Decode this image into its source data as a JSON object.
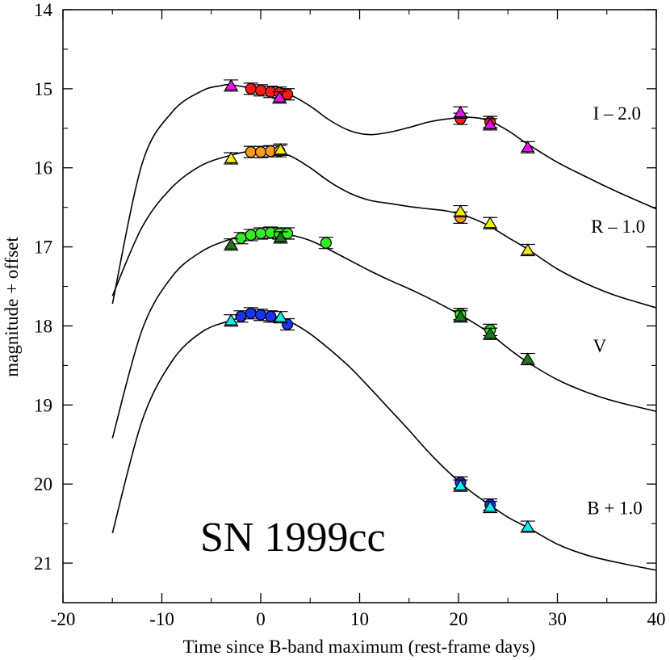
{
  "chart_data": {
    "type": "scatter",
    "title": "SN 1999cc",
    "xlabel": "Time since B-band maximum (rest-frame days)",
    "ylabel": "magnitude + offset",
    "xlim": [
      -20,
      40
    ],
    "ylim": [
      21.5,
      14
    ],
    "y_inverted": true,
    "x_ticks": [
      -20,
      -10,
      0,
      10,
      20,
      30,
      40
    ],
    "x_tick_labels": [
      "-20",
      "-10",
      "0",
      "10",
      "20",
      "30",
      "40"
    ],
    "y_ticks": [
      14,
      15,
      16,
      17,
      18,
      19,
      20,
      21
    ],
    "y_tick_labels": [
      "14",
      "15",
      "16",
      "17",
      "18",
      "19",
      "20",
      "21"
    ],
    "series": [
      {
        "name": "I – 2.0",
        "label_pos": [
          33.6,
          15.39
        ],
        "circle_color": "#ff1a1a",
        "triangle_color": "#ee11ee",
        "circles": [
          [
            -1.0,
            15.0
          ],
          [
            0.0,
            15.02
          ],
          [
            1.0,
            15.04
          ],
          [
            1.9,
            15.05
          ],
          [
            2.7,
            15.07
          ],
          [
            20.2,
            15.38
          ],
          [
            23.2,
            15.42
          ]
        ],
        "triangles": [
          [
            -3.0,
            14.96
          ],
          [
            1.9,
            15.11
          ],
          [
            20.2,
            15.3
          ],
          [
            23.2,
            15.45
          ],
          [
            27.0,
            15.74
          ]
        ],
        "curve": [
          [
            -15,
            17.72
          ],
          [
            -12,
            15.95
          ],
          [
            -9,
            15.3
          ],
          [
            -6,
            15.03
          ],
          [
            -4,
            14.96
          ],
          [
            -3,
            14.95
          ],
          [
            -1,
            14.99
          ],
          [
            1,
            15.03
          ],
          [
            3,
            15.08
          ],
          [
            5,
            15.22
          ],
          [
            7,
            15.4
          ],
          [
            9,
            15.53
          ],
          [
            11,
            15.58
          ],
          [
            13,
            15.55
          ],
          [
            15,
            15.49
          ],
          [
            17,
            15.42
          ],
          [
            19,
            15.38
          ],
          [
            21,
            15.36
          ],
          [
            23,
            15.4
          ],
          [
            25,
            15.53
          ],
          [
            27,
            15.7
          ],
          [
            30,
            15.93
          ],
          [
            33,
            16.12
          ],
          [
            36,
            16.3
          ],
          [
            40,
            16.52
          ]
        ]
      },
      {
        "name": "R – 1.0",
        "label_pos": [
          33.4,
          16.82
        ],
        "circle_color": "#ff9a1a",
        "triangle_color": "#eeee11",
        "circles": [
          [
            -1.0,
            15.8
          ],
          [
            0.0,
            15.8
          ],
          [
            1.0,
            15.79
          ],
          [
            1.9,
            15.79
          ],
          [
            20.2,
            16.63
          ]
        ],
        "triangles": [
          [
            -3.0,
            15.88
          ],
          [
            2.0,
            15.77
          ],
          [
            20.2,
            16.55
          ],
          [
            23.2,
            16.7
          ],
          [
            27.0,
            17.04
          ]
        ],
        "curve": [
          [
            -15,
            17.62
          ],
          [
            -12,
            16.75
          ],
          [
            -9,
            16.25
          ],
          [
            -6,
            15.97
          ],
          [
            -3,
            15.84
          ],
          [
            -1,
            15.79
          ],
          [
            1,
            15.79
          ],
          [
            3,
            15.85
          ],
          [
            5,
            16.0
          ],
          [
            7,
            16.18
          ],
          [
            9,
            16.32
          ],
          [
            11,
            16.41
          ],
          [
            13,
            16.45
          ],
          [
            15,
            16.49
          ],
          [
            17,
            16.52
          ],
          [
            19,
            16.55
          ],
          [
            21,
            16.62
          ],
          [
            23,
            16.73
          ],
          [
            25,
            16.88
          ],
          [
            27,
            17.03
          ],
          [
            30,
            17.28
          ],
          [
            33,
            17.47
          ],
          [
            36,
            17.62
          ],
          [
            40,
            17.77
          ]
        ]
      },
      {
        "name": "V",
        "label_pos": [
          33.6,
          18.33
        ],
        "circle_color": "#33ee22",
        "triangle_color": "#1a7a1a",
        "circles": [
          [
            -2.0,
            16.89
          ],
          [
            -1.0,
            16.85
          ],
          [
            0.0,
            16.83
          ],
          [
            1.0,
            16.82
          ],
          [
            1.9,
            16.83
          ],
          [
            2.7,
            16.83
          ],
          [
            6.6,
            16.95
          ],
          [
            20.2,
            17.85
          ],
          [
            23.2,
            18.05
          ]
        ],
        "triangles": [
          [
            -3.0,
            16.97
          ],
          [
            2.0,
            16.88
          ],
          [
            20.2,
            17.88
          ],
          [
            23.2,
            18.1
          ],
          [
            27.0,
            18.42
          ]
        ],
        "curve": [
          [
            -15,
            19.42
          ],
          [
            -12,
            18.05
          ],
          [
            -9,
            17.38
          ],
          [
            -6,
            17.06
          ],
          [
            -3,
            16.9
          ],
          [
            -1,
            16.84
          ],
          [
            1,
            16.82
          ],
          [
            3,
            16.85
          ],
          [
            5,
            16.92
          ],
          [
            7,
            17.04
          ],
          [
            9,
            17.17
          ],
          [
            11,
            17.3
          ],
          [
            13,
            17.42
          ],
          [
            15,
            17.53
          ],
          [
            17,
            17.65
          ],
          [
            19,
            17.78
          ],
          [
            21,
            17.92
          ],
          [
            23,
            18.08
          ],
          [
            25,
            18.28
          ],
          [
            27,
            18.46
          ],
          [
            30,
            18.68
          ],
          [
            33,
            18.84
          ],
          [
            36,
            18.96
          ],
          [
            40,
            19.08
          ]
        ]
      },
      {
        "name": "B + 1.0",
        "label_pos": [
          33.0,
          20.38
        ],
        "circle_color": "#1a33ee",
        "triangle_color": "#11eeee",
        "circles": [
          [
            -2.0,
            17.88
          ],
          [
            -1.0,
            17.84
          ],
          [
            0.0,
            17.86
          ],
          [
            1.0,
            17.88
          ],
          [
            2.7,
            17.98
          ],
          [
            20.2,
            19.98
          ],
          [
            23.2,
            20.26
          ]
        ],
        "triangles": [
          [
            -3.0,
            17.93
          ],
          [
            2.0,
            17.89
          ],
          [
            20.2,
            20.02
          ],
          [
            23.2,
            20.29
          ],
          [
            27.0,
            20.54
          ]
        ],
        "curve": [
          [
            -15,
            20.62
          ],
          [
            -12,
            19.2
          ],
          [
            -9,
            18.45
          ],
          [
            -6,
            18.08
          ],
          [
            -3,
            17.93
          ],
          [
            -1,
            17.87
          ],
          [
            1,
            17.87
          ],
          [
            3,
            17.95
          ],
          [
            5,
            18.1
          ],
          [
            7,
            18.3
          ],
          [
            9,
            18.52
          ],
          [
            11,
            18.78
          ],
          [
            13,
            19.05
          ],
          [
            15,
            19.32
          ],
          [
            17,
            19.6
          ],
          [
            19,
            19.85
          ],
          [
            21,
            20.07
          ],
          [
            23,
            20.25
          ],
          [
            25,
            20.42
          ],
          [
            27,
            20.55
          ],
          [
            30,
            20.76
          ],
          [
            33,
            20.9
          ],
          [
            36,
            20.99
          ],
          [
            40,
            21.09
          ]
        ]
      }
    ]
  }
}
